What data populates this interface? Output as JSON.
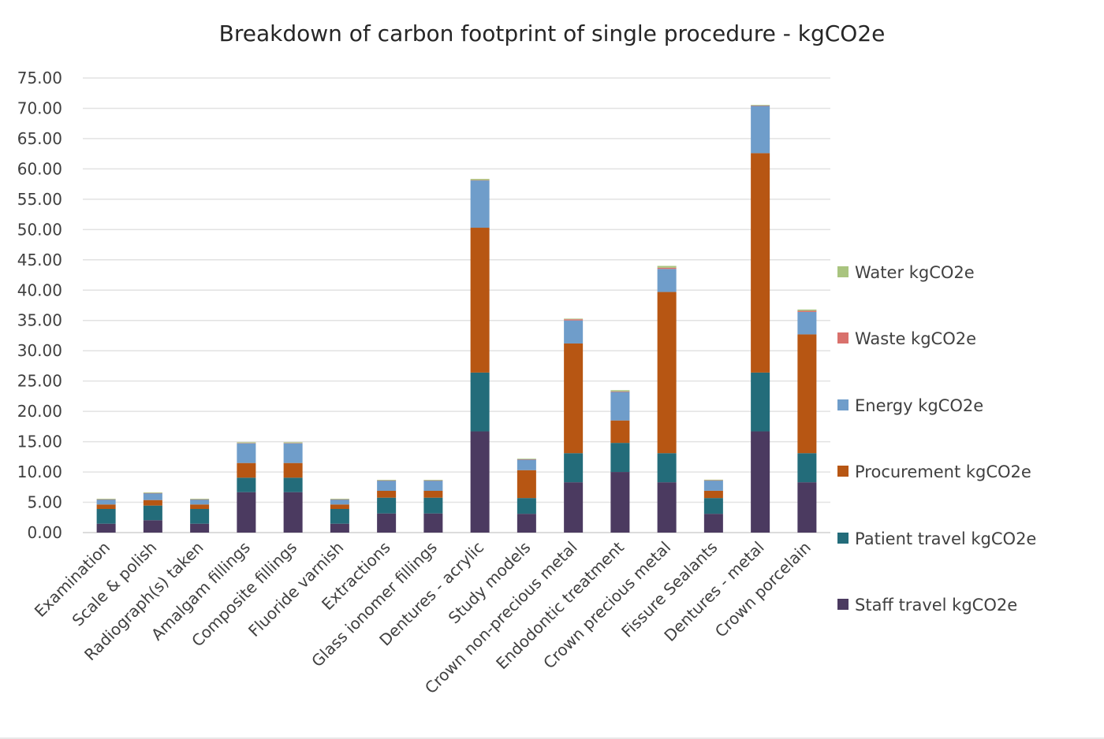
{
  "chart_data": {
    "type": "bar",
    "stacked": true,
    "title": "Breakdown of carbon footprint of single procedure - kgCO2e",
    "xlabel": "",
    "ylabel": "",
    "ylim": [
      0,
      75
    ],
    "y_ticks": [
      "0.00",
      "5.00",
      "10.00",
      "15.00",
      "20.00",
      "25.00",
      "30.00",
      "35.00",
      "40.00",
      "45.00",
      "50.00",
      "55.00",
      "60.00",
      "65.00",
      "70.00",
      "75.00"
    ],
    "grid": true,
    "legend_position": "right",
    "categories": [
      "Examination",
      "Scale & polish",
      "Radiograph(s) taken",
      "Amalgam fillings",
      "Composite fillings",
      "Fluoride varnish",
      "Extractions",
      "Glass ionomer fillings",
      "Dentures - acrylic",
      "Study models",
      "Crown non-precious metal",
      "Endodontic treatment",
      "Crown precious metal",
      "Fissure Sealants",
      "Dentures - metal",
      "Crown porcelain"
    ],
    "series": [
      {
        "name": "Staff travel kgCO2e",
        "color": "#4b3a60",
        "values": [
          1.47,
          2.04,
          1.47,
          6.67,
          6.67,
          1.47,
          3.16,
          3.16,
          16.7,
          3.1,
          8.3,
          10.0,
          8.3,
          3.1,
          16.7,
          8.3
        ]
      },
      {
        "name": "Patient travel kgCO2e",
        "color": "#236c7a",
        "values": [
          2.43,
          2.42,
          2.43,
          2.39,
          2.39,
          2.43,
          2.6,
          2.6,
          9.7,
          2.6,
          4.8,
          4.8,
          4.8,
          2.6,
          9.7,
          4.8
        ]
      },
      {
        "name": "Procurement kgCO2e",
        "color": "#b75613",
        "values": [
          0.74,
          0.91,
          0.74,
          2.42,
          2.42,
          0.74,
          1.13,
          1.13,
          23.9,
          4.6,
          18.1,
          3.7,
          26.6,
          1.2,
          36.2,
          19.6
        ]
      },
      {
        "name": "Energy kgCO2e",
        "color": "#6f9dca",
        "values": [
          0.82,
          1.13,
          0.82,
          3.25,
          3.25,
          0.82,
          1.69,
          1.69,
          7.8,
          1.76,
          3.8,
          4.7,
          3.8,
          1.7,
          7.8,
          3.7
        ]
      },
      {
        "name": "Waste kgCO2e",
        "color": "#d9716c",
        "values": [
          0.03,
          0.03,
          0.03,
          0.05,
          0.05,
          0.03,
          0.03,
          0.03,
          0.05,
          0.03,
          0.2,
          0.1,
          0.2,
          0.03,
          0.05,
          0.2
        ]
      },
      {
        "name": "Water kgCO2e",
        "color": "#a9c47f",
        "values": [
          0.1,
          0.1,
          0.1,
          0.12,
          0.12,
          0.1,
          0.1,
          0.1,
          0.2,
          0.1,
          0.1,
          0.2,
          0.3,
          0.1,
          0.1,
          0.2
        ]
      }
    ]
  }
}
